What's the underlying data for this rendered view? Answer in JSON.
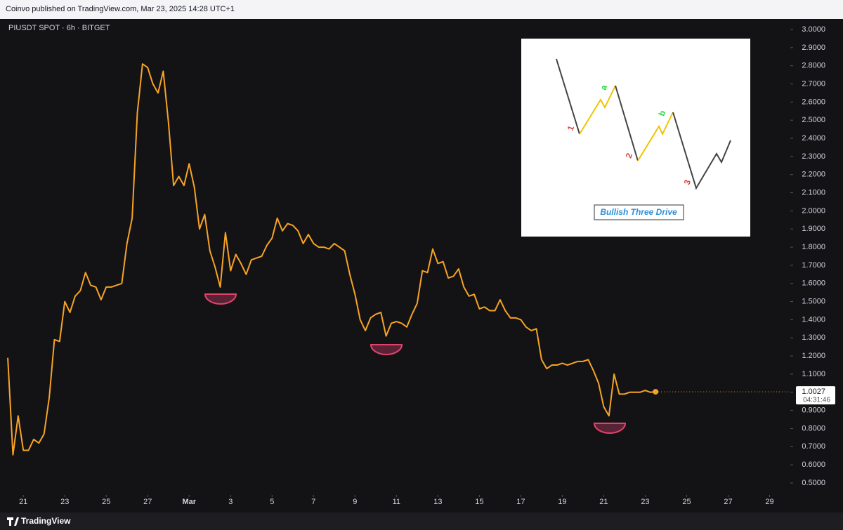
{
  "header": {
    "published": "Coinvo published on TradingView.com, Mar 23, 2025 14:28 UTC+1"
  },
  "footer": {
    "brand": "TradingView"
  },
  "chart_data": {
    "type": "line",
    "title": "PIUSDT SPOT · 6h · BITGET",
    "series": [
      {
        "name": "PIUSDT",
        "color": "#f7a325",
        "values": [
          1.19,
          0.655,
          0.87,
          0.68,
          0.68,
          0.74,
          0.72,
          0.77,
          0.97,
          1.29,
          1.28,
          1.5,
          1.44,
          1.53,
          1.56,
          1.66,
          1.59,
          1.58,
          1.51,
          1.58,
          1.58,
          1.59,
          1.6,
          1.82,
          1.96,
          2.54,
          2.81,
          2.79,
          2.7,
          2.65,
          2.77,
          2.49,
          2.14,
          2.19,
          2.14,
          2.26,
          2.13,
          1.9,
          1.98,
          1.78,
          1.69,
          1.58,
          1.88,
          1.67,
          1.76,
          1.71,
          1.65,
          1.73,
          1.74,
          1.75,
          1.81,
          1.85,
          1.96,
          1.89,
          1.93,
          1.92,
          1.89,
          1.82,
          1.87,
          1.82,
          1.8,
          1.8,
          1.79,
          1.82,
          1.8,
          1.78,
          1.65,
          1.54,
          1.4,
          1.34,
          1.41,
          1.43,
          1.44,
          1.31,
          1.38,
          1.39,
          1.38,
          1.36,
          1.43,
          1.49,
          1.67,
          1.66,
          1.79,
          1.71,
          1.72,
          1.63,
          1.64,
          1.68,
          1.58,
          1.53,
          1.54,
          1.46,
          1.47,
          1.45,
          1.45,
          1.51,
          1.45,
          1.41,
          1.41,
          1.4,
          1.36,
          1.34,
          1.35,
          1.18,
          1.13,
          1.15,
          1.15,
          1.16,
          1.15,
          1.16,
          1.17,
          1.17,
          1.18,
          1.12,
          1.05,
          0.92,
          0.87,
          1.1,
          0.99,
          0.99,
          1.0,
          1.0,
          1.0,
          1.01,
          1.0,
          1.0027
        ]
      }
    ],
    "last_price": 1.0027,
    "countdown": "04:31:46",
    "xlim": [
      -1.5,
      151
    ],
    "xticks": [
      {
        "value": 3,
        "label": "21"
      },
      {
        "value": 11,
        "label": "23"
      },
      {
        "value": 19,
        "label": "25"
      },
      {
        "value": 27,
        "label": "27"
      },
      {
        "value": 35,
        "label": "Mar"
      },
      {
        "value": 43,
        "label": "3"
      },
      {
        "value": 51,
        "label": "5"
      },
      {
        "value": 59,
        "label": "7"
      },
      {
        "value": 67,
        "label": "9"
      },
      {
        "value": 75,
        "label": "11"
      },
      {
        "value": 83,
        "label": "13"
      },
      {
        "value": 91,
        "label": "15"
      },
      {
        "value": 99,
        "label": "17"
      },
      {
        "value": 107,
        "label": "19"
      },
      {
        "value": 115,
        "label": "21"
      },
      {
        "value": 123,
        "label": "23"
      },
      {
        "value": 131,
        "label": "25"
      },
      {
        "value": 139,
        "label": "27"
      },
      {
        "value": 147,
        "label": "29"
      }
    ],
    "ylim": [
      0.45,
      3.05
    ],
    "yticks": [
      {
        "value": 0.5,
        "label": "0.5000"
      },
      {
        "value": 0.6,
        "label": "0.6000"
      },
      {
        "value": 0.7,
        "label": "0.7000"
      },
      {
        "value": 0.8,
        "label": "0.8000"
      },
      {
        "value": 0.9,
        "label": "0.9000"
      },
      {
        "value": 1.0,
        "label": "1.0000"
      },
      {
        "value": 1.1,
        "label": "1.1000"
      },
      {
        "value": 1.2,
        "label": "1.2000"
      },
      {
        "value": 1.3,
        "label": "1.3000"
      },
      {
        "value": 1.4,
        "label": "1.4000"
      },
      {
        "value": 1.5,
        "label": "1.5000"
      },
      {
        "value": 1.6,
        "label": "1.6000"
      },
      {
        "value": 1.7,
        "label": "1.7000"
      },
      {
        "value": 1.8,
        "label": "1.8000"
      },
      {
        "value": 1.9,
        "label": "1.9000"
      },
      {
        "value": 2.0,
        "label": "2.0000"
      },
      {
        "value": 2.1,
        "label": "2.1000"
      },
      {
        "value": 2.2,
        "label": "2.2000"
      },
      {
        "value": 2.3,
        "label": "2.3000"
      },
      {
        "value": 2.4,
        "label": "2.4000"
      },
      {
        "value": 2.5,
        "label": "2.5000"
      },
      {
        "value": 2.6,
        "label": "2.6000"
      },
      {
        "value": 2.7,
        "label": "2.7000"
      },
      {
        "value": 2.8,
        "label": "2.8000"
      },
      {
        "value": 2.9,
        "label": "2.9000"
      },
      {
        "value": 3.0,
        "label": "3.0000"
      }
    ],
    "grid": false,
    "annotations": {
      "drive1": "1",
      "leg_a": "a",
      "drive2": "2",
      "leg_b": "b",
      "drive3": "3",
      "pattern": "Bullish Three Drive"
    }
  }
}
